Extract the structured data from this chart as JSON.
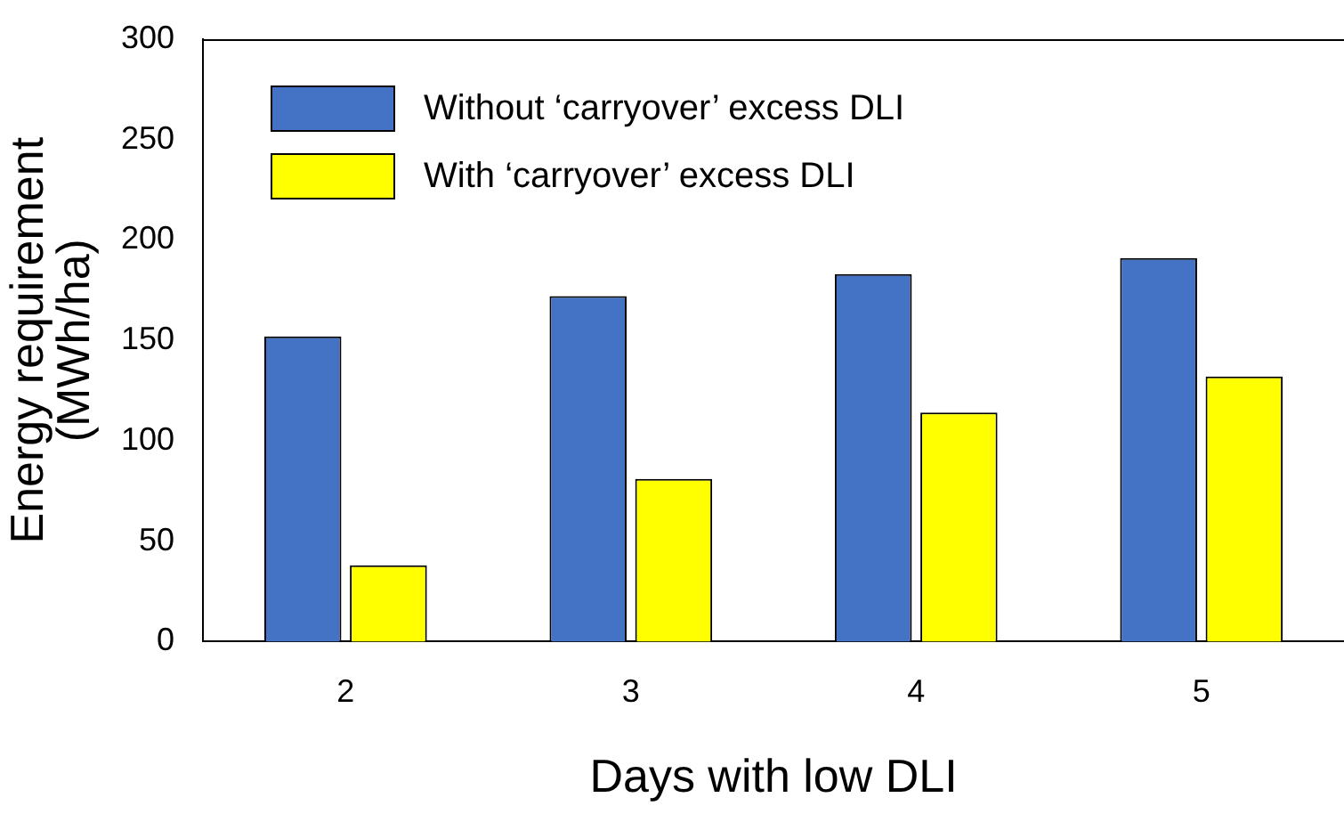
{
  "chart_data": {
    "type": "bar",
    "xlabel": "Days with low DLI",
    "ylabel": "Energy requirement\n(MWh/ha)",
    "categories": [
      "2",
      "3",
      "4",
      "5"
    ],
    "series": [
      {
        "name": "Without ‘carryover’ excess DLI",
        "color": "#4472c4",
        "values": [
          152,
          172,
          183,
          191
        ]
      },
      {
        "name": "With ‘carryover’ excess DLI",
        "color": "#ffff00",
        "values": [
          38,
          81,
          114,
          132
        ]
      }
    ],
    "ylim": [
      0,
      300
    ],
    "yticks": [
      0,
      50,
      100,
      150,
      200,
      250,
      300
    ],
    "grid": false,
    "legend": "top left"
  }
}
